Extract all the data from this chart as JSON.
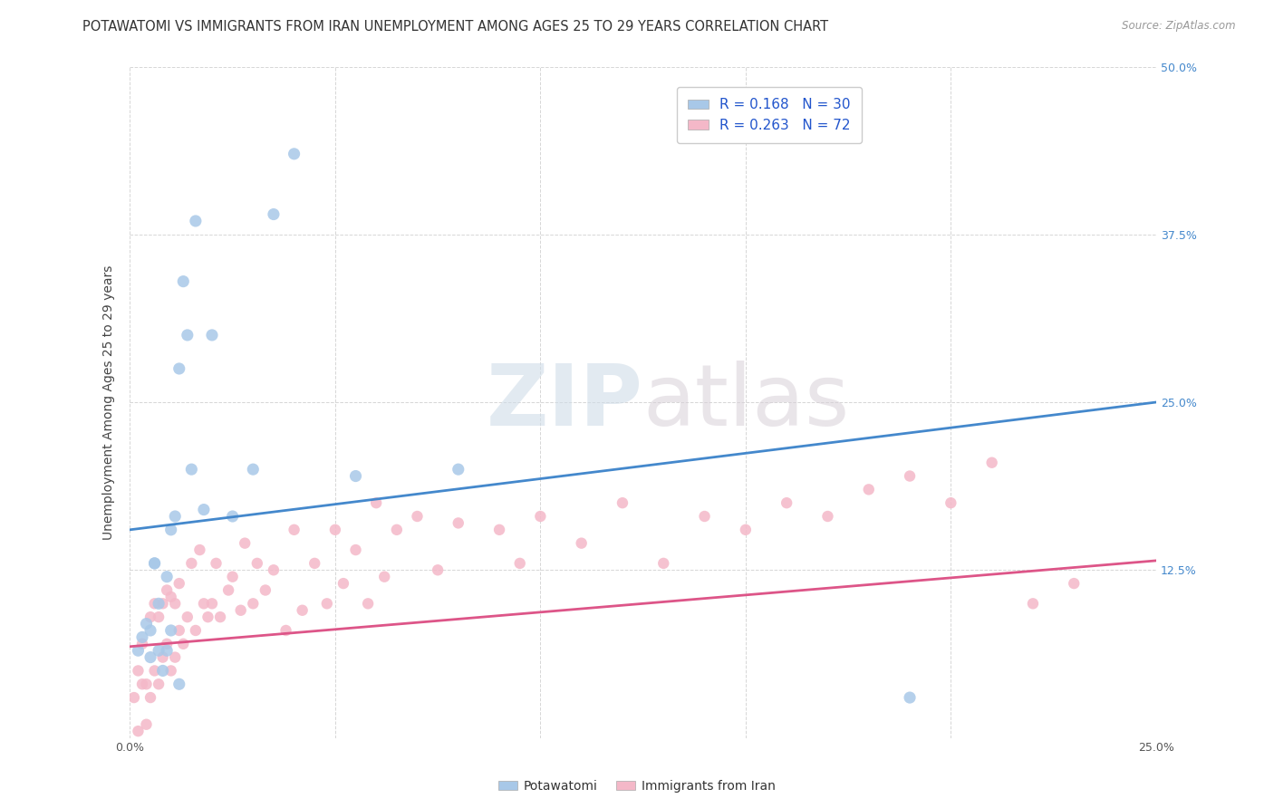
{
  "title": "POTAWATOMI VS IMMIGRANTS FROM IRAN UNEMPLOYMENT AMONG AGES 25 TO 29 YEARS CORRELATION CHART",
  "source": "Source: ZipAtlas.com",
  "ylabel": "Unemployment Among Ages 25 to 29 years",
  "xlim": [
    0.0,
    0.25
  ],
  "ylim": [
    0.0,
    0.5
  ],
  "legend_label1": "R = 0.168   N = 30",
  "legend_label2": "R = 0.263   N = 72",
  "color_blue": "#a8c8e8",
  "color_pink": "#f4b8c8",
  "line_color_blue": "#4488cc",
  "line_color_pink": "#dd5588",
  "watermark_zip": "ZIP",
  "watermark_atlas": "atlas",
  "potawatomi_x": [
    0.002,
    0.003,
    0.004,
    0.005,
    0.005,
    0.006,
    0.006,
    0.007,
    0.007,
    0.008,
    0.009,
    0.009,
    0.01,
    0.01,
    0.011,
    0.012,
    0.012,
    0.013,
    0.014,
    0.015,
    0.016,
    0.018,
    0.02,
    0.025,
    0.03,
    0.035,
    0.04,
    0.055,
    0.08,
    0.19
  ],
  "potawatomi_y": [
    0.065,
    0.075,
    0.085,
    0.06,
    0.08,
    0.13,
    0.13,
    0.065,
    0.1,
    0.05,
    0.065,
    0.12,
    0.08,
    0.155,
    0.165,
    0.04,
    0.275,
    0.34,
    0.3,
    0.2,
    0.385,
    0.17,
    0.3,
    0.165,
    0.2,
    0.39,
    0.435,
    0.195,
    0.2,
    0.03
  ],
  "iran_x": [
    0.001,
    0.002,
    0.002,
    0.003,
    0.003,
    0.004,
    0.004,
    0.005,
    0.005,
    0.006,
    0.006,
    0.007,
    0.007,
    0.008,
    0.008,
    0.009,
    0.009,
    0.01,
    0.01,
    0.011,
    0.011,
    0.012,
    0.012,
    0.013,
    0.014,
    0.015,
    0.016,
    0.017,
    0.018,
    0.019,
    0.02,
    0.021,
    0.022,
    0.024,
    0.025,
    0.027,
    0.028,
    0.03,
    0.031,
    0.033,
    0.035,
    0.038,
    0.04,
    0.042,
    0.045,
    0.048,
    0.05,
    0.052,
    0.055,
    0.058,
    0.06,
    0.062,
    0.065,
    0.07,
    0.075,
    0.08,
    0.09,
    0.095,
    0.1,
    0.11,
    0.12,
    0.13,
    0.14,
    0.15,
    0.16,
    0.17,
    0.18,
    0.19,
    0.2,
    0.21,
    0.22,
    0.23
  ],
  "iran_y": [
    0.03,
    0.05,
    0.005,
    0.04,
    0.07,
    0.04,
    0.01,
    0.03,
    0.09,
    0.05,
    0.1,
    0.04,
    0.09,
    0.06,
    0.1,
    0.07,
    0.11,
    0.05,
    0.105,
    0.06,
    0.1,
    0.08,
    0.115,
    0.07,
    0.09,
    0.13,
    0.08,
    0.14,
    0.1,
    0.09,
    0.1,
    0.13,
    0.09,
    0.11,
    0.12,
    0.095,
    0.145,
    0.1,
    0.13,
    0.11,
    0.125,
    0.08,
    0.155,
    0.095,
    0.13,
    0.1,
    0.155,
    0.115,
    0.14,
    0.1,
    0.175,
    0.12,
    0.155,
    0.165,
    0.125,
    0.16,
    0.155,
    0.13,
    0.165,
    0.145,
    0.175,
    0.13,
    0.165,
    0.155,
    0.175,
    0.165,
    0.185,
    0.195,
    0.175,
    0.205,
    0.1,
    0.115
  ],
  "blue_line_y_start": 0.155,
  "blue_line_y_end": 0.25,
  "pink_line_y_start": 0.068,
  "pink_line_y_end": 0.132,
  "grid_color": "#cccccc",
  "title_fontsize": 10.5,
  "tick_fontsize": 9,
  "legend_fontsize": 11,
  "ylabel_fontsize": 10
}
